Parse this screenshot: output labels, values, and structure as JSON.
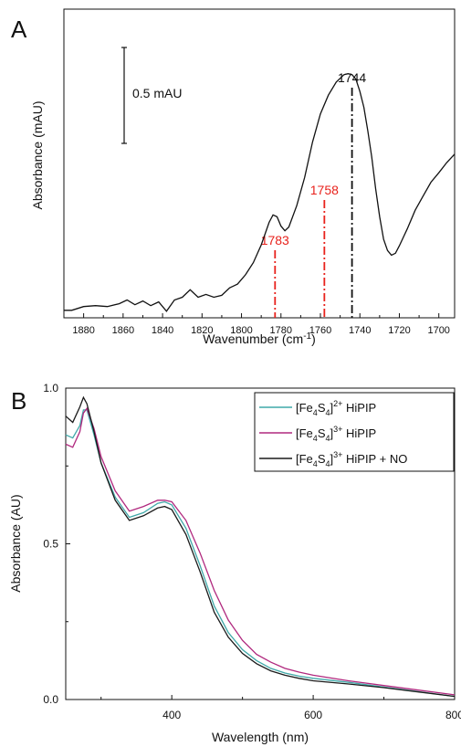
{
  "chart_data": [
    {
      "type": "line",
      "panel_label": "A",
      "xlabel": "Wavenumber (cm",
      "xlabel_sup": "-1",
      "xlabel_close": ")",
      "ylabel": "Absorbance (mAU)",
      "xlim": [
        1890,
        1692
      ],
      "x_reversed": true,
      "ylim": [
        0,
        3.3
      ],
      "y_ticks_labeled": false,
      "x_ticks": [
        1880,
        1860,
        1840,
        1820,
        1800,
        1780,
        1760,
        1740,
        1720,
        1700
      ],
      "scale_bar": {
        "label": "0.5 mAU",
        "value": 0.5
      },
      "peak_markers": [
        {
          "x": 1783,
          "label": "1783",
          "color": "#e8221c"
        },
        {
          "x": 1758,
          "label": "1758",
          "color": "#e8221c"
        },
        {
          "x": 1744,
          "label": "1744",
          "color": "#111111"
        }
      ],
      "series": [
        {
          "color": "#111111",
          "x": [
            1890,
            1886,
            1880,
            1874,
            1868,
            1862,
            1858,
            1854,
            1850,
            1846,
            1842,
            1838,
            1834,
            1830,
            1826,
            1822,
            1818,
            1814,
            1810,
            1806,
            1802,
            1798,
            1794,
            1790,
            1786,
            1784,
            1782,
            1780,
            1778,
            1776,
            1772,
            1768,
            1764,
            1760,
            1756,
            1752,
            1748,
            1746,
            1744,
            1742,
            1740,
            1738,
            1736,
            1734,
            1732,
            1730,
            1728,
            1726,
            1724,
            1722,
            1720,
            1716,
            1712,
            1708,
            1704,
            1700,
            1696,
            1692
          ],
          "y": [
            0.08,
            0.08,
            0.12,
            0.13,
            0.12,
            0.15,
            0.19,
            0.14,
            0.18,
            0.13,
            0.17,
            0.07,
            0.19,
            0.22,
            0.3,
            0.22,
            0.25,
            0.22,
            0.24,
            0.32,
            0.36,
            0.46,
            0.59,
            0.78,
            1.02,
            1.1,
            1.08,
            0.98,
            0.93,
            0.97,
            1.2,
            1.5,
            1.88,
            2.18,
            2.38,
            2.52,
            2.6,
            2.61,
            2.6,
            2.55,
            2.42,
            2.25,
            2.0,
            1.72,
            1.38,
            1.08,
            0.84,
            0.72,
            0.67,
            0.69,
            0.77,
            0.95,
            1.15,
            1.3,
            1.45,
            1.55,
            1.66,
            1.75
          ]
        }
      ]
    },
    {
      "type": "line",
      "panel_label": "B",
      "xlabel": "Wavelength (nm)",
      "ylabel": "Absorbance (AU)",
      "xlim": [
        250,
        800
      ],
      "ylim": [
        0.0,
        1.0
      ],
      "x_ticks": [
        400,
        600,
        800
      ],
      "x_tick_labels": [
        "400",
        "600",
        "800"
      ],
      "y_ticks": [
        0.0,
        0.5,
        1.0
      ],
      "y_tick_labels": [
        "0.0",
        "0.5",
        "1.0"
      ],
      "legend_position": "top-right",
      "series": [
        {
          "name": "[Fe4S4]2+ HiPIP",
          "legend": {
            "pre": "[Fe",
            "sub1": "4",
            "mid": "S",
            "sub2": "4",
            "post": "]",
            "sup": "2+",
            "tail": " HiPIP"
          },
          "color": "#3fa8a8",
          "x": [
            250,
            260,
            270,
            275,
            280,
            290,
            300,
            320,
            340,
            360,
            380,
            390,
            400,
            420,
            440,
            460,
            480,
            500,
            520,
            540,
            560,
            580,
            600,
            650,
            700,
            750,
            800
          ],
          "y": [
            0.85,
            0.84,
            0.88,
            0.93,
            0.93,
            0.85,
            0.76,
            0.65,
            0.585,
            0.6,
            0.63,
            0.635,
            0.625,
            0.55,
            0.43,
            0.3,
            0.215,
            0.16,
            0.125,
            0.1,
            0.085,
            0.075,
            0.068,
            0.055,
            0.04,
            0.025,
            0.01
          ]
        },
        {
          "name": "[Fe4S4]3+ HiPIP",
          "legend": {
            "pre": "[Fe",
            "sub1": "4",
            "mid": "S",
            "sub2": "4",
            "post": "]",
            "sup": "3+",
            "tail": " HiPIP"
          },
          "color": "#b0287e",
          "x": [
            250,
            260,
            270,
            275,
            280,
            290,
            300,
            320,
            340,
            360,
            380,
            390,
            400,
            420,
            440,
            460,
            480,
            500,
            520,
            540,
            560,
            580,
            600,
            650,
            700,
            750,
            800
          ],
          "y": [
            0.82,
            0.81,
            0.86,
            0.92,
            0.935,
            0.87,
            0.78,
            0.67,
            0.605,
            0.62,
            0.64,
            0.64,
            0.635,
            0.575,
            0.47,
            0.35,
            0.255,
            0.19,
            0.145,
            0.12,
            0.1,
            0.088,
            0.078,
            0.06,
            0.045,
            0.03,
            0.015
          ]
        },
        {
          "name": "[Fe4S4]3+ HiPIP + NO",
          "legend": {
            "pre": "[Fe",
            "sub1": "4",
            "mid": "S",
            "sub2": "4",
            "post": "]",
            "sup": "3+",
            "tail": " HiPIP + NO"
          },
          "color": "#1a1a1a",
          "x": [
            250,
            260,
            270,
            275,
            280,
            290,
            300,
            320,
            340,
            360,
            380,
            390,
            400,
            420,
            440,
            460,
            480,
            500,
            520,
            540,
            560,
            580,
            600,
            650,
            700,
            750,
            800
          ],
          "y": [
            0.91,
            0.89,
            0.94,
            0.97,
            0.95,
            0.86,
            0.76,
            0.64,
            0.575,
            0.59,
            0.615,
            0.62,
            0.61,
            0.53,
            0.41,
            0.28,
            0.2,
            0.148,
            0.115,
            0.092,
            0.078,
            0.068,
            0.06,
            0.05,
            0.038,
            0.024,
            0.01
          ]
        }
      ]
    }
  ]
}
